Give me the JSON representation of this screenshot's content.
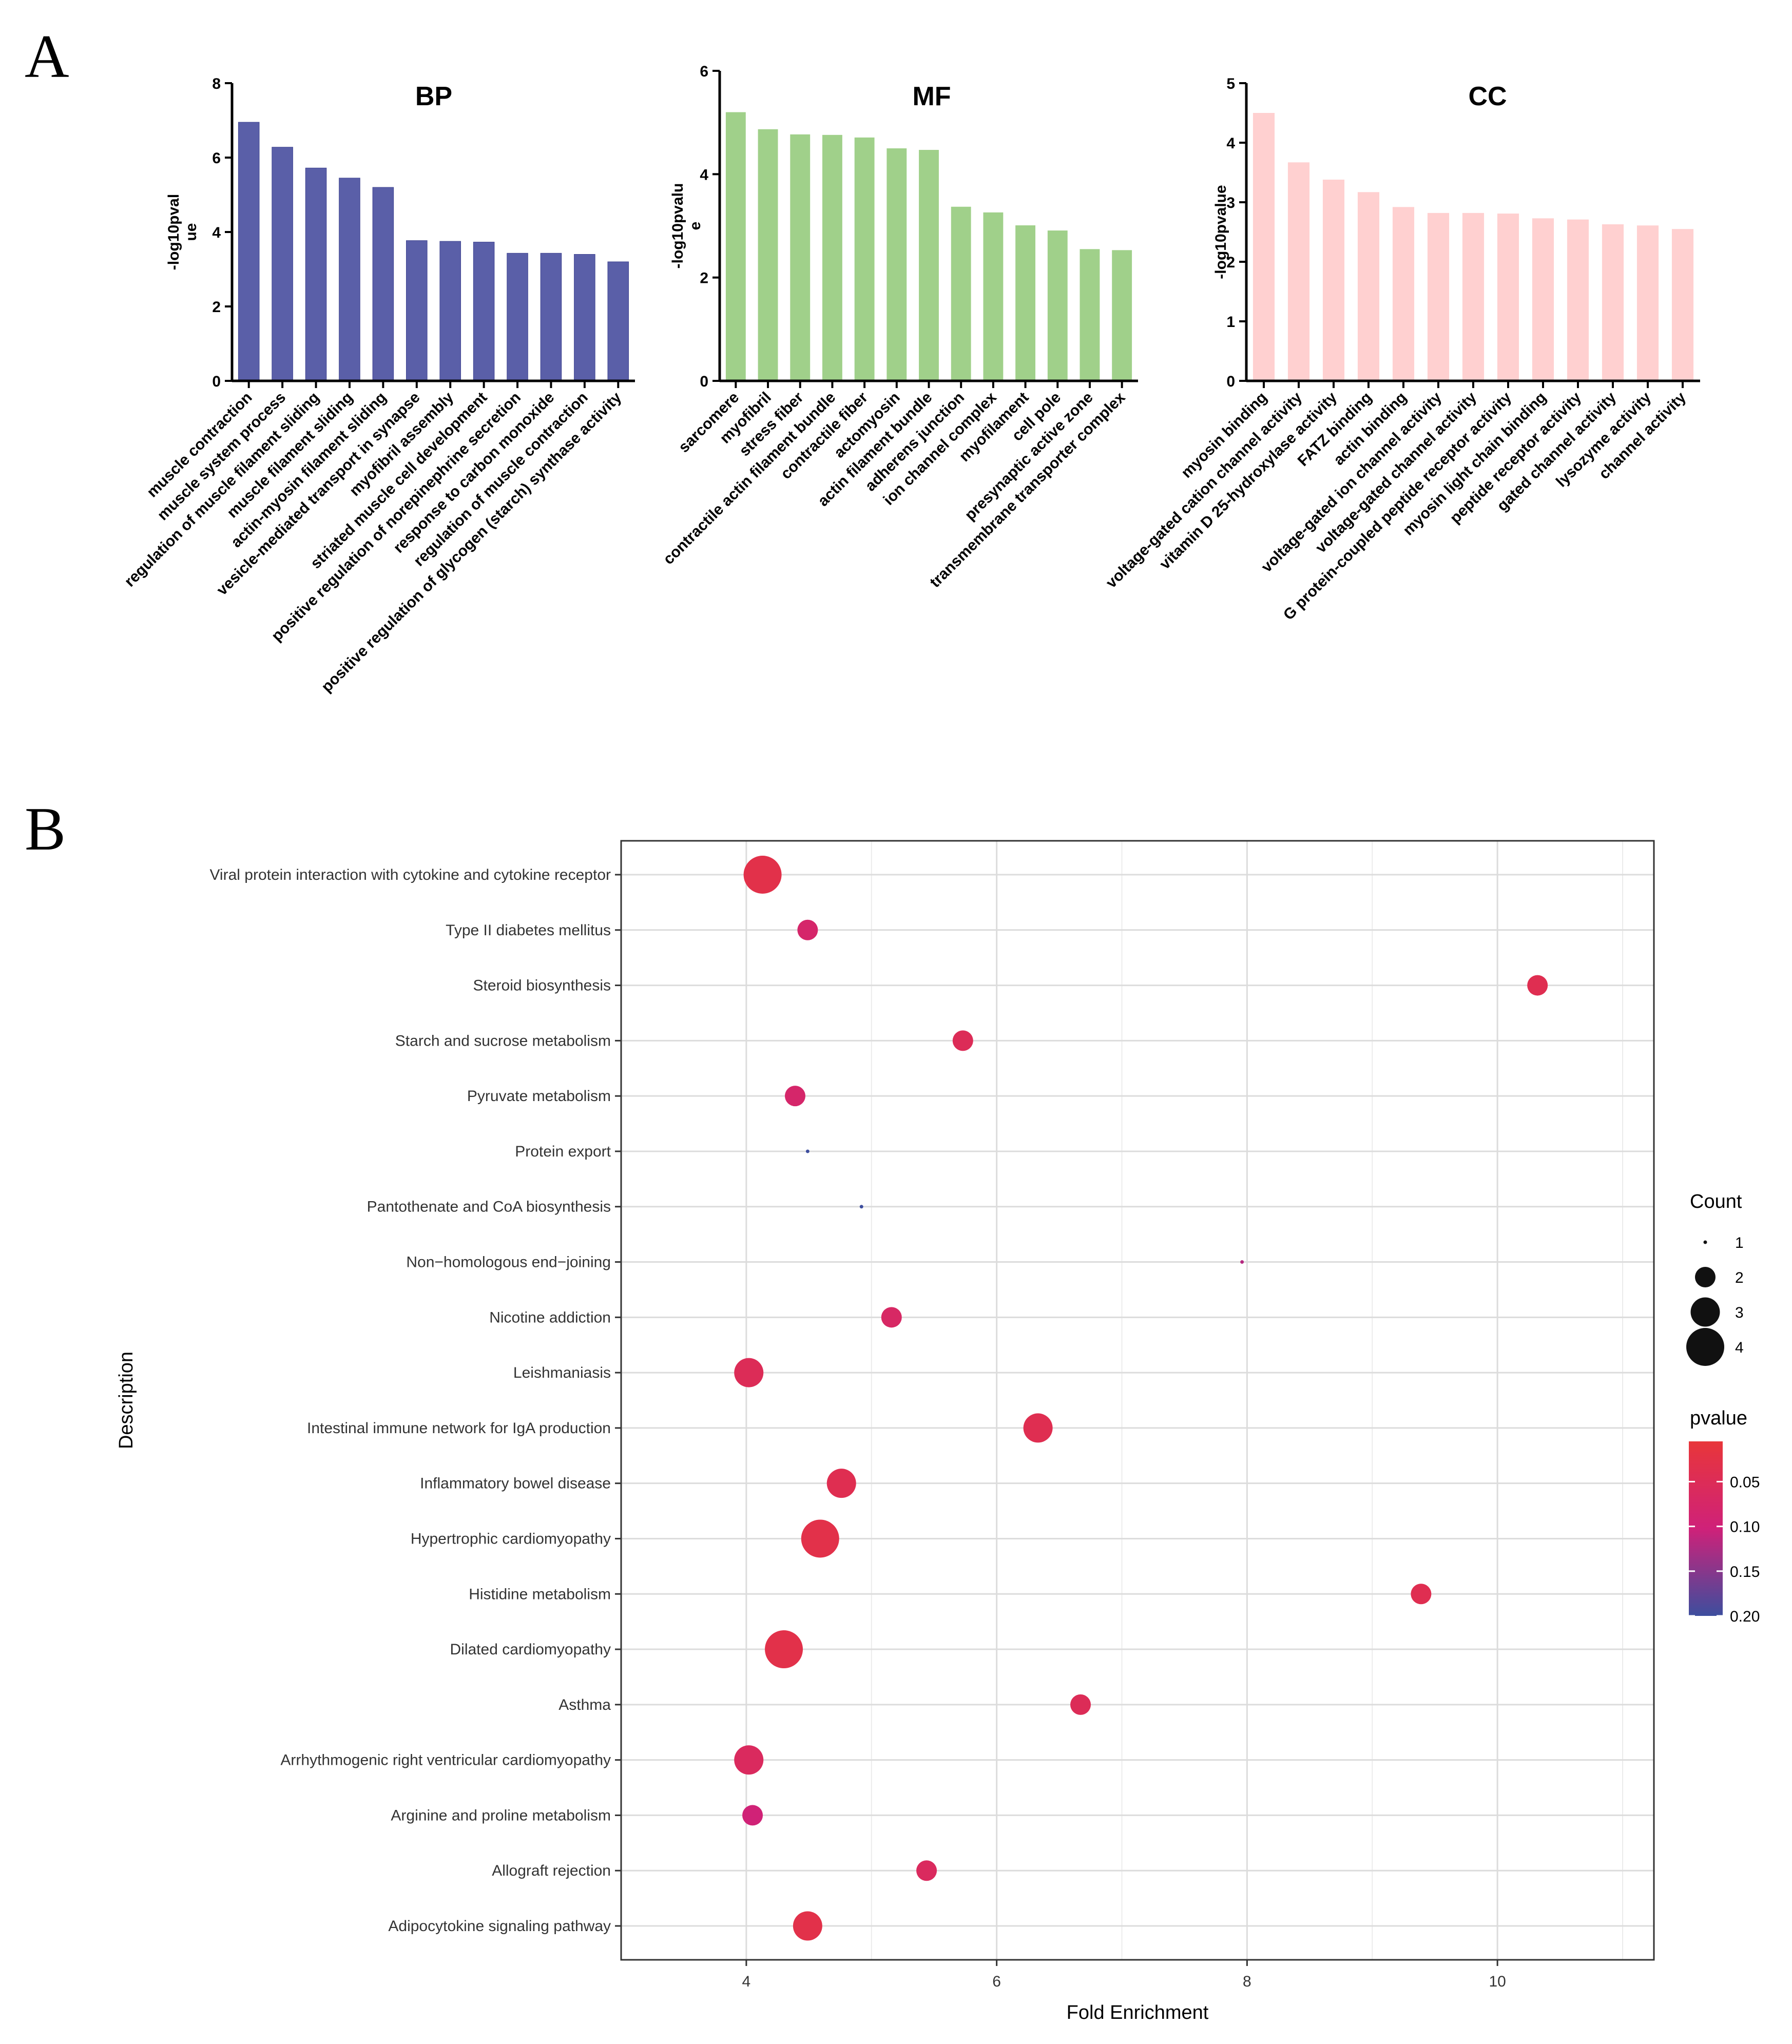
{
  "panel_a_label": "A",
  "panel_b_label": "B",
  "chart_data": [
    {
      "type": "bar",
      "title": "BP",
      "ylabel": "-log10pvalue",
      "ylabel_lines": [
        "-log10pval",
        "ue"
      ],
      "ylim": [
        0,
        8
      ],
      "yticks": [
        0,
        2,
        4,
        6,
        8
      ],
      "color": "#5a5fa8",
      "categories": [
        "muscle contraction",
        "muscle system process",
        "regulation of muscle filament sliding",
        "muscle filament sliding",
        "actin-myosin filament sliding",
        "vesicle-mediated transport in synapse",
        "myofibril assembly",
        "striated muscle cell development",
        "positive regulation of norepinephrine secretion",
        "response to carbon monoxide",
        "regulation of muscle contraction",
        "positive regulation of glycogen (starch) synthase activity"
      ],
      "values": [
        6.95,
        6.28,
        5.72,
        5.45,
        5.2,
        3.77,
        3.75,
        3.73,
        3.43,
        3.43,
        3.4,
        3.2
      ]
    },
    {
      "type": "bar",
      "title": "MF",
      "ylabel": "-log10pvalue",
      "ylabel_lines": [
        "-log10pvalu",
        "e"
      ],
      "ylim": [
        0,
        6
      ],
      "yticks": [
        0,
        2,
        4,
        6
      ],
      "color": "#a0d08a",
      "categories": [
        "sarcomere",
        "myofibril",
        "stress fiber",
        "contractile actin filament bundle",
        "contractile fiber",
        "actomyosin",
        "actin filament bundle",
        "adherens junction",
        "ion channel complex",
        "myofilament",
        "cell pole",
        "presynaptic active zone",
        "transmembrane transporter complex"
      ],
      "values": [
        5.2,
        4.87,
        4.77,
        4.76,
        4.71,
        4.5,
        4.47,
        3.37,
        3.26,
        3.01,
        2.91,
        2.55,
        2.53
      ]
    },
    {
      "type": "bar",
      "title": "CC",
      "ylabel": "-log10pvalue",
      "ylabel_lines": [
        "-log10pvalue"
      ],
      "ylim": [
        0,
        5
      ],
      "yticks": [
        0,
        1,
        2,
        3,
        4,
        5
      ],
      "color": "#ffd0d0",
      "categories": [
        "myosin binding",
        "voltage-gated cation channel activity",
        "vitamin D 25-hydroxylase activity",
        "FATZ binding",
        "actin binding",
        "voltage-gated ion channel activity",
        "voltage-gated channel activity",
        "G protein-coupled peptide receptor activity",
        "myosin light chain binding",
        "peptide receptor activity",
        "gated channel activity",
        "lysozyme activity",
        "channel activity"
      ],
      "values": [
        4.5,
        3.67,
        3.38,
        3.17,
        2.92,
        2.82,
        2.82,
        2.81,
        2.73,
        2.71,
        2.63,
        2.61,
        2.55
      ]
    },
    {
      "type": "scatter",
      "xlabel": "Fold Enrichment",
      "ylabel": "Description",
      "xlim": [
        3.0,
        11.25
      ],
      "xticks": [
        4,
        6,
        8,
        10
      ],
      "size_legend_title": "Count",
      "size_legend_values": [
        1,
        2,
        3,
        4
      ],
      "color_legend_title": "pvalue",
      "color_legend_ticks": [
        "0.05",
        "0.10",
        "0.15",
        "0.20"
      ],
      "color_legend_tick_values": [
        0.05,
        0.1,
        0.15,
        0.2
      ],
      "color_range": [
        0.005,
        0.2
      ],
      "color_low": "#e8363a",
      "color_high": "#3d4e9e",
      "categories": [
        "Viral protein interaction with cytokine and cytokine receptor",
        "Type II diabetes mellitus",
        "Steroid biosynthesis",
        "Starch and sucrose metabolism",
        "Pyruvate metabolism",
        "Protein export",
        "Pantothenate and CoA biosynthesis",
        "Non−homologous end−joining",
        "Nicotine addiction",
        "Leishmaniasis",
        "Intestinal immune network for IgA production",
        "Inflammatory bowel disease",
        "Hypertrophic cardiomyopathy",
        "Histidine metabolism",
        "Dilated cardiomyopathy",
        "Asthma",
        "Arrhythmogenic right ventricular cardiomyopathy",
        "Arginine and proline metabolism",
        "Allograft rejection",
        "Adipocytokine signaling pathway"
      ],
      "fold_enrichment": [
        4.13,
        4.49,
        10.32,
        5.73,
        4.39,
        4.49,
        4.92,
        7.96,
        5.16,
        4.02,
        6.33,
        4.76,
        4.59,
        9.39,
        4.3,
        6.67,
        4.02,
        4.05,
        5.44,
        4.49
      ],
      "count": [
        4,
        2,
        2,
        2,
        2,
        1,
        1,
        1,
        2,
        3,
        3,
        3,
        4,
        2,
        4,
        2,
        3,
        2,
        2,
        3
      ],
      "pvalue": [
        0.03,
        0.08,
        0.04,
        0.05,
        0.08,
        0.2,
        0.2,
        0.12,
        0.07,
        0.05,
        0.04,
        0.04,
        0.03,
        0.04,
        0.03,
        0.05,
        0.06,
        0.1,
        0.06,
        0.03
      ]
    }
  ]
}
